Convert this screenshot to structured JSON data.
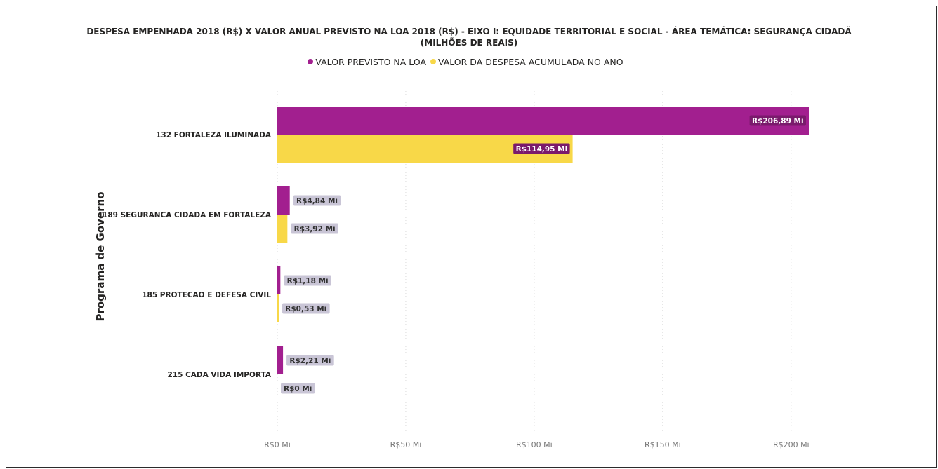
{
  "title_line1": "DESPESA EMPENHADA 2018 (R$) X VALOR ANUAL PREVISTO NA LOA 2018 (R$) - EIXO I: EQUIDADE TERRITORIAL E SOCIAL - ÁREA TEMÁTICA: SEGURANÇA CIDADÃ",
  "title_line2": "(MILHÕES DE REAIS)",
  "legend": [
    {
      "label": "VALOR PREVISTO NA LOA",
      "color": "#A21F8F"
    },
    {
      "label": "VALOR DA DESPESA ACUMULADA NO ANO",
      "color": "#F8D848"
    }
  ],
  "yaxis_title": "Programa de Governo",
  "chart_data": {
    "type": "bar",
    "orientation": "horizontal",
    "categories": [
      "132 FORTALEZA ILUMINADA",
      "189 SEGURANCA CIDADA EM FORTALEZA",
      "185 PROTECAO E DEFESA CIVIL",
      "215 CADA VIDA IMPORTA"
    ],
    "series": [
      {
        "name": "VALOR PREVISTO NA LOA",
        "color": "#A21F8F",
        "values": [
          206.89,
          4.84,
          1.18,
          2.21
        ],
        "labels": [
          "R$206,89 Mi",
          "R$4,84 Mi",
          "R$1,18 Mi",
          "R$2,21 Mi"
        ]
      },
      {
        "name": "VALOR DA DESPESA ACUMULADA NO ANO",
        "color": "#F8D848",
        "values": [
          114.95,
          3.92,
          0.53,
          0
        ],
        "labels": [
          "R$114,95 Mi",
          "R$3,92 Mi",
          "R$0,53 Mi",
          "R$0 Mi"
        ]
      }
    ],
    "xlim": [
      0,
      206.89
    ],
    "xticks": [
      0,
      50,
      100,
      150,
      200
    ],
    "xtick_labels": [
      "R$0 Mi",
      "R$50 Mi",
      "R$100 Mi",
      "R$150 Mi",
      "R$200 Mi"
    ],
    "ylabel": "Programa de Governo",
    "grid": "vertical dotted",
    "legend_position": "top-center"
  }
}
